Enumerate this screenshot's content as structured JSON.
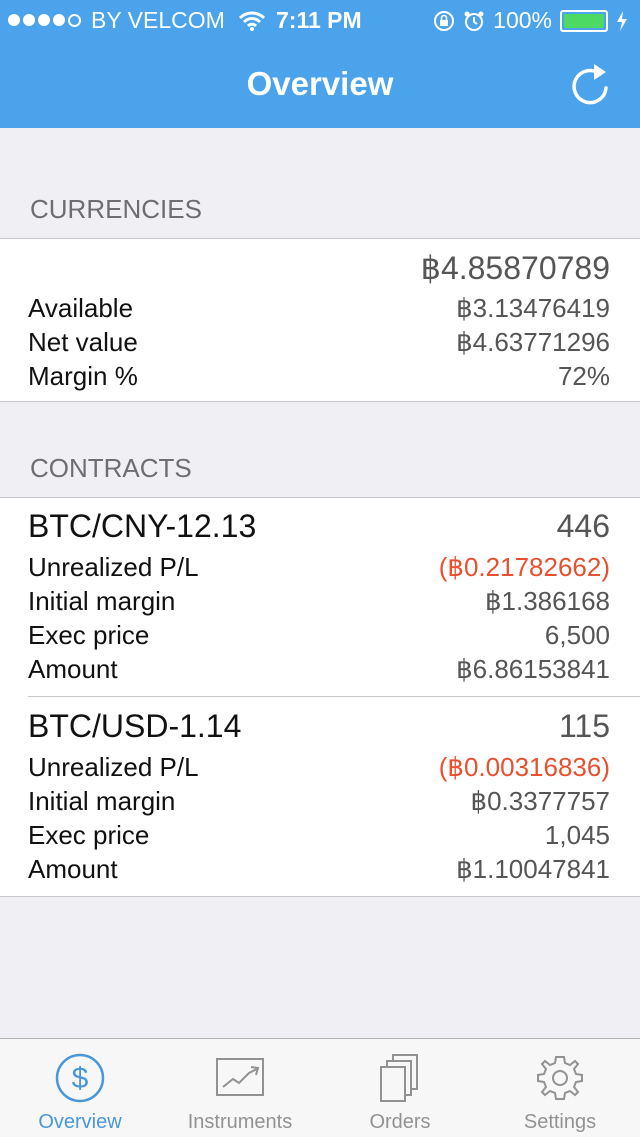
{
  "status_bar": {
    "carrier": "BY VELCOM",
    "time": "7:11 PM",
    "battery": "100%",
    "battery_level": 1.0
  },
  "nav": {
    "title": "Overview"
  },
  "currencies": {
    "header": "CURRENCIES",
    "total": "฿4.85870789",
    "rows": [
      {
        "label": "Available",
        "value": "฿3.13476419"
      },
      {
        "label": "Net value",
        "value": "฿4.63771296"
      },
      {
        "label": "Margin %",
        "value": "72%"
      }
    ]
  },
  "contracts": {
    "header": "CONTRACTS",
    "items": [
      {
        "name": "BTC/CNY-12.13",
        "count": "446",
        "unrealized_label": "Unrealized P/L",
        "unrealized_value": "(฿0.21782662)",
        "initial_margin_label": "Initial margin",
        "initial_margin_value": "฿1.386168",
        "exec_price_label": "Exec price",
        "exec_price_value": "6,500",
        "amount_label": "Amount",
        "amount_value": "฿6.86153841"
      },
      {
        "name": "BTC/USD-1.14",
        "count": "115",
        "unrealized_label": "Unrealized P/L",
        "unrealized_value": "(฿0.00316836)",
        "initial_margin_label": "Initial margin",
        "initial_margin_value": "฿0.3377757",
        "exec_price_label": "Exec price",
        "exec_price_value": "1,045",
        "amount_label": "Amount",
        "amount_value": "฿1.10047841"
      }
    ]
  },
  "tabbar": {
    "tabs": [
      {
        "label": "Overview",
        "icon": "dollar-circle-icon",
        "active": true
      },
      {
        "label": "Instruments",
        "icon": "chart-icon",
        "active": false
      },
      {
        "label": "Orders",
        "icon": "documents-icon",
        "active": false
      },
      {
        "label": "Settings",
        "icon": "gear-icon",
        "active": false
      }
    ]
  },
  "colors": {
    "header": "#4aa3eb",
    "negative": "#e9502f",
    "active_tab": "#4a97d9",
    "battery": "#4cd964"
  }
}
